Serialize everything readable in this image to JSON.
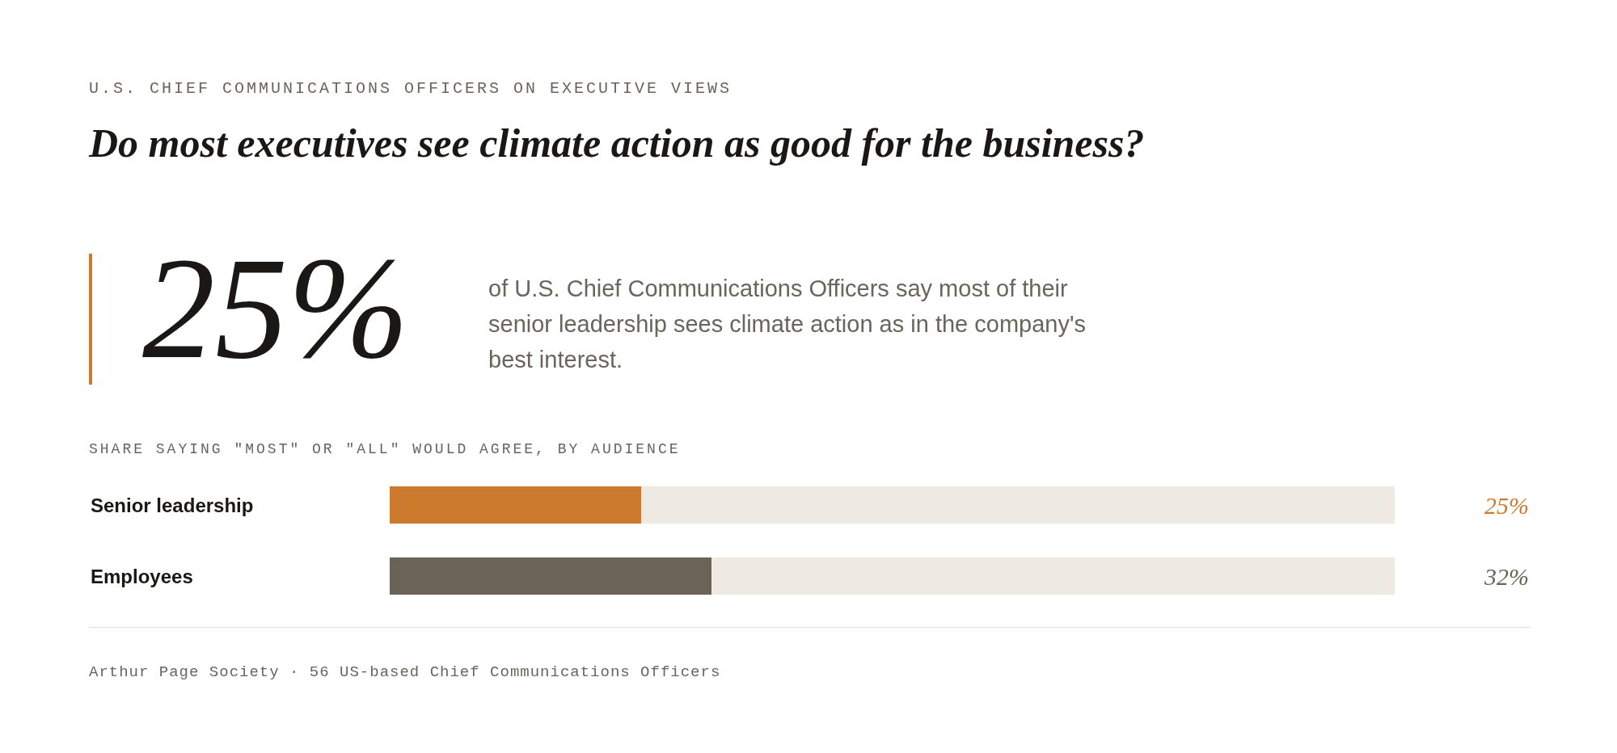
{
  "chart_data": {
    "type": "bar",
    "orientation": "horizontal",
    "subtitle": "U.S. CHIEF COMMUNICATIONS OFFICERS ON EXECUTIVE VIEWS",
    "title": "Do most executives see climate action as good for the business?",
    "annotations": [
      "25%",
      "of U.S. Chief Communications Officers say most of their senior leadership sees climate action as in the company's best interest.",
      "SHARE SAYING \"MOST\" OR \"ALL\" WOULD AGREE, BY AUDIENCE",
      "Arthur Page Society · 56 US-based Chief Communications Officers"
    ],
    "categories": [
      "Senior leadership",
      "Employees"
    ],
    "values": [
      25,
      32
    ],
    "colors": [
      "#cc7a2e",
      "#6b6357"
    ],
    "value_labels": [
      "25%",
      "32%"
    ],
    "xlim": [
      0,
      100
    ],
    "bands": [
      {
        "axis": "x",
        "from": 0,
        "to": 100,
        "color": "#eee9e2"
      }
    ],
    "grid": false,
    "legend": false
  }
}
